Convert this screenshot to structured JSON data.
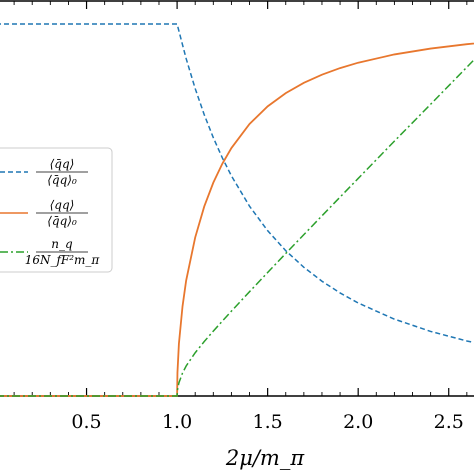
{
  "chart_data": {
    "type": "line",
    "xlabel": "2μ/m_π",
    "xlim": [
      0.0,
      2.75
    ],
    "ylim": [
      0.0,
      1.0
    ],
    "x_ticks": [
      "0.5",
      "1.0",
      "1.5",
      "2.0",
      "2.5"
    ],
    "grid": false,
    "legend_placement": "left",
    "series": [
      {
        "name": "⟨q̄q⟩ / ⟨q̄q⟩₀",
        "style": "dashed",
        "color": "#1f77b4",
        "x": [
          0.0,
          0.25,
          0.5,
          0.75,
          1.0,
          1.05,
          1.1,
          1.15,
          1.2,
          1.25,
          1.3,
          1.4,
          1.5,
          1.6,
          1.7,
          1.8,
          1.9,
          2.0,
          2.2,
          2.4,
          2.6,
          2.75
        ],
        "y": [
          1.0,
          1.0,
          1.0,
          1.0,
          1.0,
          0.907,
          0.8264,
          0.7561,
          0.6944,
          0.64,
          0.5917,
          0.5102,
          0.4444,
          0.3906,
          0.346,
          0.3086,
          0.277,
          0.25,
          0.2066,
          0.1736,
          0.1479,
          0.1322
        ]
      },
      {
        "name": "⟨qq⟩ / ⟨q̄q⟩₀",
        "style": "solid",
        "color": "#e8772e",
        "x": [
          0.0,
          0.25,
          0.5,
          0.75,
          1.0,
          1.002,
          1.01,
          1.03,
          1.05,
          1.1,
          1.15,
          1.2,
          1.25,
          1.3,
          1.4,
          1.5,
          1.6,
          1.7,
          1.8,
          1.9,
          2.0,
          2.2,
          2.4,
          2.6,
          2.75
        ],
        "y": [
          0.0,
          0.0,
          0.0,
          0.0,
          0.0,
          0.063,
          0.1404,
          0.241,
          0.3104,
          0.4263,
          0.5095,
          0.5735,
          0.6246,
          0.6665,
          0.7314,
          0.7786,
          0.8141,
          0.8418,
          0.8638,
          0.8815,
          0.896,
          0.9182,
          0.934,
          0.9457,
          0.9528
        ]
      },
      {
        "name": "n_q / (16 N_f F² m_π)",
        "style": "dashdot",
        "color": "#2ca02c",
        "x": [
          0.0,
          0.25,
          0.5,
          0.75,
          1.0,
          1.002,
          1.01,
          1.03,
          1.05,
          1.1,
          1.15,
          1.2,
          1.25,
          1.3,
          1.4,
          1.5,
          1.6,
          1.7,
          1.8,
          1.9,
          2.0,
          2.2,
          2.4,
          2.6,
          2.75
        ],
        "y": [
          0.0,
          0.0,
          0.0,
          0.0,
          0.0,
          0.0158,
          0.0354,
          0.0617,
          0.0807,
          0.1163,
          0.1464,
          0.1744,
          0.2015,
          0.2282,
          0.2804,
          0.332,
          0.3831,
          0.4338,
          0.4844,
          0.5347,
          0.5848,
          0.6851,
          0.7842,
          0.8839,
          0.9584
        ]
      }
    ],
    "legend_tex": [
      {
        "num": "⟨q̄q⟩",
        "den": "⟨q̄q⟩₀"
      },
      {
        "num": "⟨qq⟩",
        "den": "⟨q̄q⟩₀"
      },
      {
        "num": "n_q",
        "den": "16N_fF²m_π"
      }
    ]
  }
}
